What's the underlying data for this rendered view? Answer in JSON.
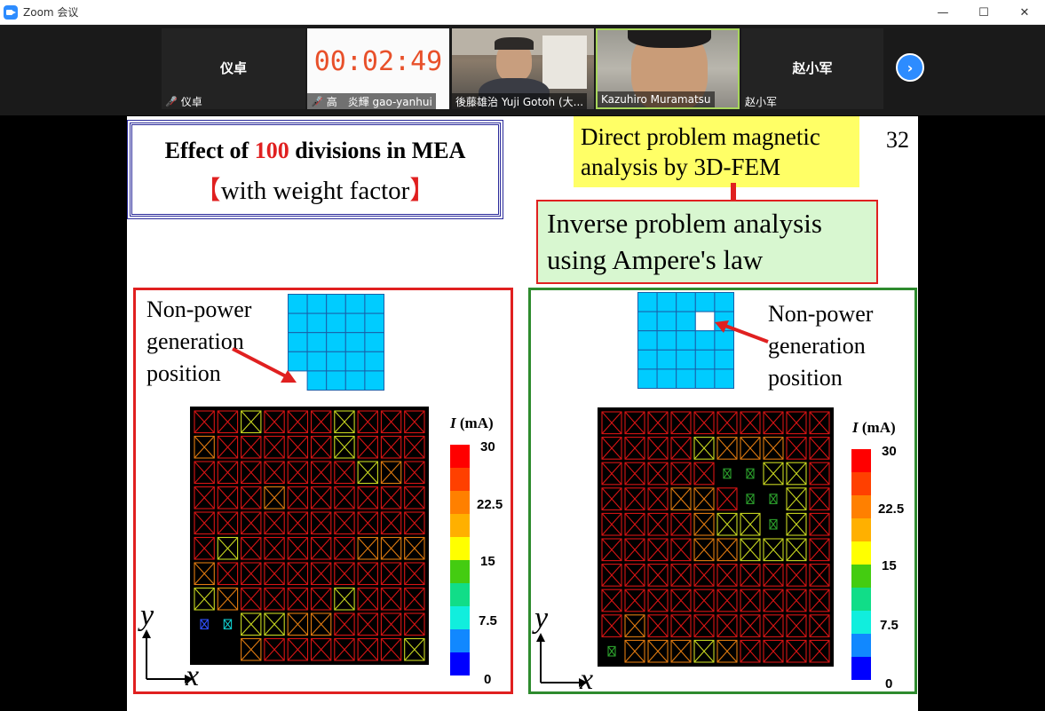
{
  "window": {
    "title": "Zoom 会议",
    "min": "—",
    "max": "☐",
    "close": "✕"
  },
  "strip": {
    "tiles": [
      {
        "center_name": "仪卓",
        "caption": "仪卓",
        "muted": true
      },
      {
        "timer": "00:02:49",
        "caption": "高　炎輝 gao-yanhui",
        "muted": true
      },
      {
        "caption": "後藤雄治 Yuji Gotoh (大..."
      },
      {
        "caption": "Kazuhiro Muramatsu"
      },
      {
        "center_name": "赵小军",
        "caption": "赵小军"
      }
    ],
    "next_icon": "chevron-right-icon"
  },
  "slide": {
    "page_number": "32",
    "title_line1_a": "Effect of ",
    "title_line1_num": "100",
    "title_line1_b": " divisions in MEA",
    "title_line2_open": "【",
    "title_line2_text": "with weight factor",
    "title_line2_close": "】",
    "direct_box": [
      "Direct problem magnetic",
      "analysis by 3D-FEM"
    ],
    "inverse_box": [
      "Inverse problem analysis",
      "using Ampere's law"
    ],
    "left_panel": {
      "label": [
        "Non-power",
        "generation",
        "position"
      ]
    },
    "right_panel": {
      "label": [
        "Non-power",
        "generation",
        "position"
      ]
    },
    "axis_y": "y",
    "axis_x": "x",
    "colorbar": {
      "title_var": "I",
      "title_unit": " (mA)",
      "ticks": [
        "30",
        "22.5",
        "15",
        "7.5",
        "0"
      ],
      "colors": [
        "#ff0000",
        "#ff4000",
        "#ff8000",
        "#ffb000",
        "#ffff00",
        "#44cc11",
        "#11dd88",
        "#11eedd",
        "#1188ff",
        "#0000ff"
      ]
    }
  },
  "accent": {
    "zoom_blue": "#2D8CFF",
    "timer_orange": "#e8502a",
    "highlight_red": "#e02020"
  }
}
